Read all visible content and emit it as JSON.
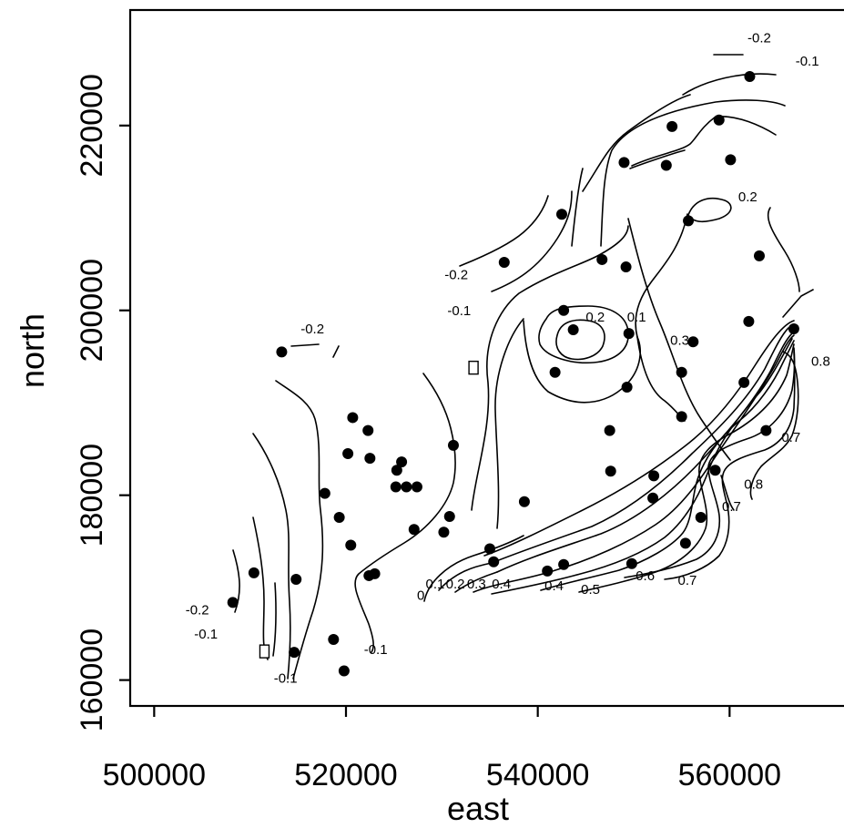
{
  "chart_data": {
    "type": "contour",
    "title": "",
    "xlabel": "east",
    "ylabel": "north",
    "xlim": [
      497500,
      572500
    ],
    "ylim": [
      157200,
      232500
    ],
    "x_ticks": [
      500000,
      520000,
      540000,
      560000
    ],
    "y_ticks": [
      160000,
      180000,
      200000,
      220000
    ],
    "x_tick_labels": [
      "500000",
      "520000",
      "540000",
      "560000"
    ],
    "y_tick_labels": [
      "160000",
      "180000",
      "200000",
      "220000"
    ],
    "grid": false,
    "legend": "none",
    "points": [
      [
        513300,
        195500
      ],
      [
        520700,
        188400
      ],
      [
        522300,
        187000
      ],
      [
        520200,
        184500
      ],
      [
        522500,
        184000
      ],
      [
        525800,
        183600
      ],
      [
        525300,
        182700
      ],
      [
        525200,
        180900
      ],
      [
        526300,
        180900
      ],
      [
        527400,
        180900
      ],
      [
        517800,
        180200
      ],
      [
        519300,
        177600
      ],
      [
        527100,
        176300
      ],
      [
        530200,
        176000
      ],
      [
        530800,
        177700
      ],
      [
        531200,
        185400
      ],
      [
        520500,
        174600
      ],
      [
        510400,
        171600
      ],
      [
        514800,
        170900
      ],
      [
        522400,
        171300
      ],
      [
        523000,
        171500
      ],
      [
        508200,
        168400
      ],
      [
        518700,
        164400
      ],
      [
        514600,
        163000
      ],
      [
        519800,
        161000
      ],
      [
        535000,
        174200
      ],
      [
        535400,
        172800
      ],
      [
        538600,
        179300
      ],
      [
        541000,
        171800
      ],
      [
        542700,
        172500
      ],
      [
        549800,
        172600
      ],
      [
        555400,
        174800
      ],
      [
        557000,
        177600
      ],
      [
        552000,
        179700
      ],
      [
        552100,
        182100
      ],
      [
        547600,
        182600
      ],
      [
        558500,
        182700
      ],
      [
        563800,
        187000
      ],
      [
        555000,
        188500
      ],
      [
        547500,
        187000
      ],
      [
        549300,
        191700
      ],
      [
        561500,
        192200
      ],
      [
        541800,
        193300
      ],
      [
        542700,
        200000
      ],
      [
        543700,
        197900
      ],
      [
        549500,
        197500
      ],
      [
        555000,
        193300
      ],
      [
        556200,
        196600
      ],
      [
        562000,
        198800
      ],
      [
        566700,
        198000
      ],
      [
        563100,
        205900
      ],
      [
        546700,
        205500
      ],
      [
        549200,
        204700
      ],
      [
        542500,
        210400
      ],
      [
        536500,
        205200
      ],
      [
        555700,
        209700
      ],
      [
        549000,
        216000
      ],
      [
        553400,
        215700
      ],
      [
        560100,
        216300
      ],
      [
        554000,
        219900
      ],
      [
        558900,
        220600
      ],
      [
        562100,
        225300
      ]
    ],
    "hollow_points": [
      [
        511500,
        163100
      ],
      [
        533300,
        193800
      ]
    ],
    "contour_levels": [
      "-0.2",
      "-0.1",
      "0.1",
      "0.2",
      "0.3",
      "0.4",
      "0.5",
      "0.6",
      "0.7",
      "0.8"
    ],
    "contour_labels": [
      {
        "text": "-0.2",
        "x": 563100,
        "y": 229000
      },
      {
        "text": "-0.1",
        "x": 568100,
        "y": 226500
      },
      {
        "text": "-0.2",
        "x": 531500,
        "y": 203400
      },
      {
        "text": "-0.1",
        "x": 531800,
        "y": 199500
      },
      {
        "text": "-0.2",
        "x": 516500,
        "y": 197500
      },
      {
        "text": "0.2",
        "x": 546000,
        "y": 198800
      },
      {
        "text": "0.1",
        "x": 550300,
        "y": 198800
      },
      {
        "text": "0.3",
        "x": 554800,
        "y": 196300
      },
      {
        "text": "0.2",
        "x": 561900,
        "y": 211800
      },
      {
        "text": "0.8",
        "x": 569500,
        "y": 194000
      },
      {
        "text": "0.7",
        "x": 566400,
        "y": 185800
      },
      {
        "text": "0.8",
        "x": 562500,
        "y": 180700
      },
      {
        "text": "0.7",
        "x": 560200,
        "y": 178300
      },
      {
        "text": "0.6",
        "x": 551200,
        "y": 170800
      },
      {
        "text": "0.7",
        "x": 555600,
        "y": 170300
      },
      {
        "text": "0.4",
        "x": 541700,
        "y": 169700
      },
      {
        "text": "0.5",
        "x": 545500,
        "y": 169300
      },
      {
        "text": "0.1",
        "x": 529300,
        "y": 169900
      },
      {
        "text": "0.2",
        "x": 531400,
        "y": 169900
      },
      {
        "text": "0.3",
        "x": 533600,
        "y": 169900
      },
      {
        "text": "0.4",
        "x": 536200,
        "y": 169900
      },
      {
        "text": "0",
        "x": 527800,
        "y": 168700
      },
      {
        "text": "-0.2",
        "x": 504500,
        "y": 167100
      },
      {
        "text": "-0.1",
        "x": 505400,
        "y": 164500
      },
      {
        "text": "-0.1",
        "x": 513700,
        "y": 159700
      },
      {
        "text": "-0.1",
        "x": 523100,
        "y": 162800
      }
    ]
  }
}
